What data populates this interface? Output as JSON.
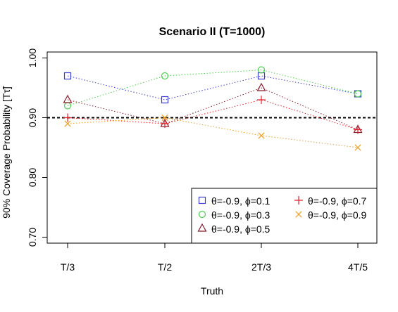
{
  "chart_data": {
    "type": "line",
    "title": "Scenario II (T=1000)",
    "xlabel": "Truth",
    "ylabel": "90% Coverage Probability [Tτ̃]",
    "categories": [
      "T/3",
      "T/2",
      "2T/3",
      "4T/5"
    ],
    "ylim": [
      0.69,
      1.01
    ],
    "yticks": [
      0.7,
      0.8,
      0.9,
      1.0
    ],
    "ytick_labels": [
      "0.70",
      "0.80",
      "0.90",
      "1.00"
    ],
    "reference_line": 0.9,
    "grid": false,
    "legend_position": "bottom-right",
    "series": [
      {
        "name": "θ=-0.9, ϕ=0.1",
        "color": "#3b3bd6",
        "marker": "square",
        "values": [
          0.97,
          0.93,
          0.97,
          0.94
        ]
      },
      {
        "name": "θ=-0.9, ϕ=0.3",
        "color": "#4cd14c",
        "marker": "circle",
        "values": [
          0.92,
          0.97,
          0.98,
          0.94
        ]
      },
      {
        "name": "θ=-0.9, ϕ=0.5",
        "color": "#8b1a2b",
        "marker": "triangle",
        "values": [
          0.93,
          0.89,
          0.95,
          0.88
        ]
      },
      {
        "name": "θ=-0.9, ϕ=0.7",
        "color": "#e8202a",
        "marker": "plus",
        "values": [
          0.9,
          0.89,
          0.93,
          0.88
        ]
      },
      {
        "name": "θ=-0.9, ϕ=0.9",
        "color": "#f0a020",
        "marker": "cross",
        "values": [
          0.89,
          0.9,
          0.87,
          0.85
        ]
      }
    ],
    "legend_order": [
      0,
      3,
      1,
      4,
      2
    ]
  }
}
